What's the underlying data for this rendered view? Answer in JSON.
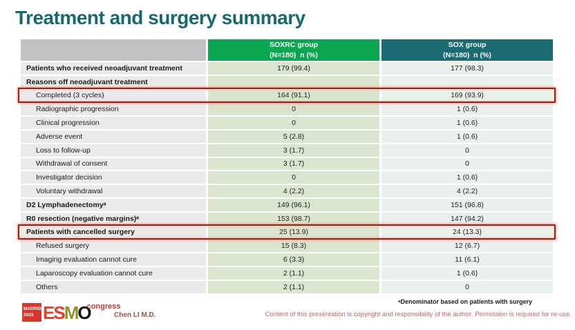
{
  "slide": {
    "title": "Treatment and surgery summary",
    "author": "Chen LI M.D.",
    "footnote": "ᵃDenominator based on patients with surgery",
    "copyright_notice": "Content of this presentation is copyright and responsibility of the author. Permission is required for re-use."
  },
  "logo": {
    "city": "MADRID",
    "year": "2023",
    "org": "ESMO",
    "letters": [
      "E",
      "S",
      "M",
      "O"
    ],
    "event": "congress"
  },
  "table": {
    "header": {
      "group1": {
        "name": "SOXRC group",
        "sub": "(N=180)  n (%)"
      },
      "group2": {
        "name": "SOX group",
        "sub": "(N=180)  n (%)"
      }
    },
    "rows": [
      {
        "label": "Patients who received neoadjuvant treatment",
        "soxrc": "179 (99.4)",
        "sox": "177 (98.3)",
        "bold": true,
        "boxed": false
      },
      {
        "label": "Reasons off neoadjuvant treatment",
        "soxrc": "",
        "sox": "",
        "bold": true,
        "boxed": false
      },
      {
        "label": "Completed (3 cycles)",
        "soxrc": "164 (91.1)",
        "sox": "169 (93.9)",
        "bold": false,
        "boxed": true
      },
      {
        "label": "Radiographic progression",
        "soxrc": "0",
        "sox": "1 (0.6)",
        "bold": false,
        "boxed": false
      },
      {
        "label": "Clinical progression",
        "soxrc": "0",
        "sox": "1 (0.6)",
        "bold": false,
        "boxed": false
      },
      {
        "label": "Adverse event",
        "soxrc": "5 (2.8)",
        "sox": "1 (0.6)",
        "bold": false,
        "boxed": false
      },
      {
        "label": "Loss to follow-up",
        "soxrc": "3 (1.7)",
        "sox": "0",
        "bold": false,
        "boxed": false
      },
      {
        "label": "Withdrawal of consent",
        "soxrc": "3 (1.7)",
        "sox": "0",
        "bold": false,
        "boxed": false
      },
      {
        "label": "Investigator decision",
        "soxrc": "0",
        "sox": "1 (0.6)",
        "bold": false,
        "boxed": false
      },
      {
        "label": "Voluntary withdrawal",
        "soxrc": "4 (2.2)",
        "sox": "4 (2.2)",
        "bold": false,
        "boxed": false
      },
      {
        "label": "D2 Lymphadenectomyᵃ",
        "soxrc": "149 (96.1)",
        "sox": "151 (96.8)",
        "bold": true,
        "boxed": false
      },
      {
        "label": "R0 resection (negative margins)ᵃ",
        "soxrc": "153 (98.7)",
        "sox": "147 (94.2)",
        "bold": true,
        "boxed": false
      },
      {
        "label": "Patients with cancelled surgery",
        "soxrc": "25 (13.9)",
        "sox": "24 (13.3)",
        "bold": true,
        "boxed": true
      },
      {
        "label": "Refused surgery",
        "soxrc": "15 (8.3)",
        "sox": "12 (6.7)",
        "bold": false,
        "boxed": false
      },
      {
        "label": "Imaging evaluation cannot cure",
        "soxrc": "6 (3.3)",
        "sox": "11 (6.1)",
        "bold": false,
        "boxed": false
      },
      {
        "label": "Laparoscopy evaluation cannot cure",
        "soxrc": "2 (1.1)",
        "sox": "1 (0.6)",
        "bold": false,
        "boxed": false
      },
      {
        "label": "Others",
        "soxrc": "2 (1.1)",
        "sox": "0",
        "bold": false,
        "boxed": false
      }
    ]
  },
  "colors": {
    "title_text": "#17696f",
    "header_label_bg": "#c1c1c1",
    "soxrc_header_bg": "#0ba652",
    "sox_header_bg": "#1a6b72",
    "label_cell_bg": "#eaeaea",
    "soxrc_cell_bg": "#d9e5cd",
    "sox_cell_bg": "#eaf1ec",
    "highlight_box_border": "#9b1f12",
    "copyright_text": "#c45f6a",
    "author_text": "#a14f44",
    "logo_red": "#d6382e",
    "logo_olive": "#94932b"
  }
}
